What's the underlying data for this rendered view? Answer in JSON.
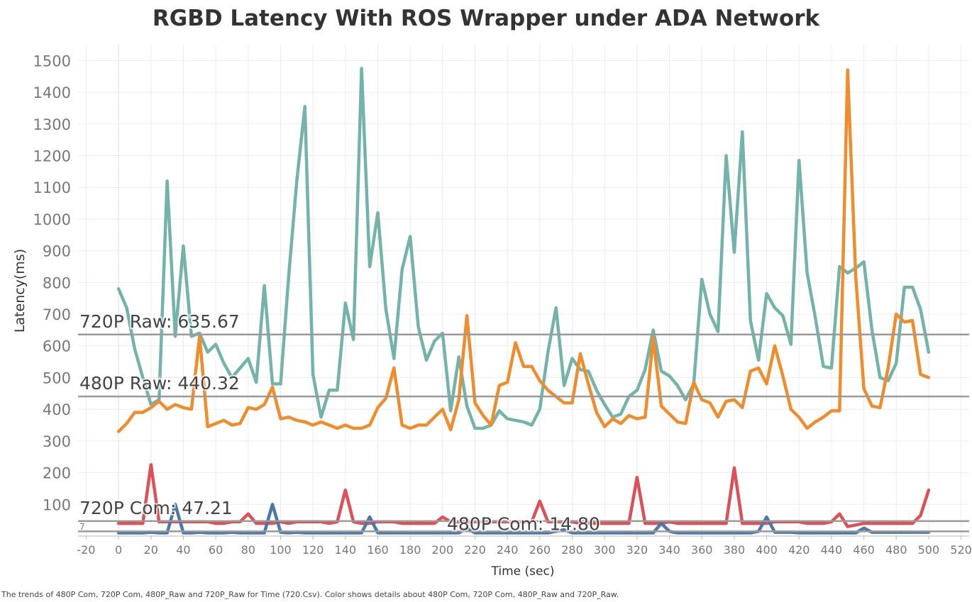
{
  "chart_data": {
    "type": "line",
    "title": "RGBD Latency With ROS Wrapper under ADA Network",
    "caption": "The trends of 480P Com, 720P Com, 480P_Raw and 720P_Raw for Time (720.Csv).  Color shows details about 480P Com, 720P Com, 480P_Raw and 720P_Raw.",
    "xlabel": "Time (sec)",
    "ylabel": "Latency(ms)",
    "xlim": [
      -25,
      525
    ],
    "ylim": [
      0,
      1550
    ],
    "x_ticks": [
      -20,
      0,
      20,
      40,
      60,
      80,
      100,
      120,
      140,
      160,
      180,
      200,
      220,
      240,
      260,
      280,
      300,
      320,
      340,
      360,
      380,
      400,
      420,
      440,
      460,
      480,
      500,
      520
    ],
    "y_ticks": [
      100,
      200,
      300,
      400,
      500,
      600,
      700,
      800,
      900,
      1000,
      1100,
      1200,
      1300,
      1400,
      1500
    ],
    "grid": true,
    "legend": "none",
    "x": [
      0,
      5,
      10,
      15,
      20,
      25,
      30,
      35,
      40,
      45,
      50,
      55,
      60,
      65,
      70,
      75,
      80,
      85,
      90,
      95,
      100,
      105,
      110,
      115,
      120,
      125,
      130,
      135,
      140,
      145,
      150,
      155,
      160,
      165,
      170,
      175,
      180,
      185,
      190,
      195,
      200,
      205,
      210,
      215,
      220,
      225,
      230,
      235,
      240,
      245,
      250,
      255,
      260,
      265,
      270,
      275,
      280,
      285,
      290,
      295,
      300,
      305,
      310,
      315,
      320,
      325,
      330,
      335,
      340,
      345,
      350,
      355,
      360,
      365,
      370,
      375,
      380,
      385,
      390,
      395,
      400,
      405,
      410,
      415,
      420,
      425,
      430,
      435,
      440,
      445,
      450,
      455,
      460,
      465,
      470,
      475,
      480,
      485,
      490,
      495,
      500
    ],
    "series": [
      {
        "key": "raw720",
        "color": "#73b3aa",
        "values": [
          780,
          720,
          590,
          500,
          415,
          430,
          1120,
          630,
          915,
          630,
          640,
          580,
          605,
          545,
          500,
          530,
          560,
          485,
          790,
          480,
          480,
          820,
          1120,
          1355,
          510,
          375,
          460,
          460,
          735,
          620,
          1475,
          850,
          1020,
          715,
          560,
          840,
          945,
          660,
          555,
          615,
          640,
          395,
          565,
          410,
          340,
          340,
          350,
          395,
          370,
          365,
          360,
          350,
          400,
          580,
          720,
          475,
          560,
          525,
          520,
          460,
          415,
          375,
          385,
          440,
          460,
          525,
          650,
          520,
          505,
          475,
          430,
          480,
          810,
          700,
          645,
          1200,
          895,
          1275,
          680,
          555,
          765,
          720,
          695,
          605,
          1185,
          830,
          690,
          535,
          530,
          850,
          830,
          845,
          865,
          650,
          500,
          490,
          545,
          785,
          785,
          715,
          580
        ]
      },
      {
        "key": "raw480",
        "color": "#ef8c2c",
        "values": [
          330,
          355,
          390,
          390,
          405,
          425,
          400,
          415,
          405,
          400,
          630,
          345,
          355,
          365,
          350,
          355,
          405,
          400,
          415,
          470,
          370,
          375,
          365,
          360,
          350,
          360,
          350,
          340,
          350,
          340,
          340,
          350,
          405,
          435,
          530,
          350,
          340,
          350,
          350,
          375,
          400,
          335,
          430,
          695,
          420,
          380,
          350,
          475,
          485,
          610,
          535,
          535,
          490,
          460,
          440,
          420,
          420,
          575,
          480,
          390,
          345,
          370,
          355,
          380,
          370,
          375,
          625,
          410,
          385,
          360,
          355,
          485,
          430,
          420,
          375,
          425,
          430,
          405,
          520,
          530,
          480,
          600,
          505,
          400,
          375,
          340,
          360,
          375,
          395,
          395,
          1470,
          820,
          465,
          410,
          405,
          530,
          700,
          675,
          680,
          510,
          500
        ]
      },
      {
        "key": "com720",
        "color": "#dc5058",
        "values": [
          40,
          40,
          40,
          40,
          225,
          45,
          45,
          45,
          45,
          45,
          45,
          45,
          40,
          40,
          45,
          45,
          70,
          40,
          40,
          40,
          45,
          40,
          45,
          45,
          45,
          45,
          40,
          45,
          145,
          45,
          40,
          40,
          45,
          45,
          45,
          40,
          40,
          40,
          40,
          40,
          60,
          45,
          45,
          45,
          45,
          45,
          45,
          45,
          45,
          45,
          45,
          45,
          110,
          45,
          45,
          45,
          45,
          40,
          40,
          40,
          40,
          40,
          40,
          40,
          185,
          40,
          40,
          40,
          45,
          40,
          40,
          40,
          40,
          40,
          40,
          40,
          215,
          40,
          40,
          40,
          40,
          45,
          45,
          45,
          45,
          40,
          40,
          40,
          45,
          70,
          30,
          35,
          40,
          40,
          40,
          40,
          40,
          40,
          40,
          65,
          145
        ]
      },
      {
        "key": "com480",
        "color": "#4c78a8",
        "values": [
          10,
          10,
          10,
          10,
          12,
          10,
          10,
          100,
          10,
          10,
          12,
          10,
          10,
          10,
          12,
          10,
          10,
          10,
          10,
          100,
          12,
          10,
          12,
          10,
          10,
          10,
          10,
          10,
          10,
          10,
          10,
          60,
          10,
          10,
          10,
          10,
          10,
          10,
          10,
          10,
          10,
          10,
          10,
          25,
          10,
          10,
          10,
          10,
          10,
          10,
          10,
          10,
          10,
          10,
          15,
          20,
          10,
          10,
          10,
          10,
          10,
          10,
          10,
          10,
          10,
          10,
          10,
          40,
          15,
          10,
          10,
          10,
          10,
          10,
          10,
          10,
          10,
          10,
          10,
          15,
          60,
          12,
          12,
          12,
          10,
          10,
          10,
          10,
          10,
          10,
          10,
          10,
          25,
          12,
          12,
          12,
          12,
          12,
          12,
          12,
          12
        ]
      }
    ],
    "reference_lines": [
      {
        "label": "720P Raw: 635.67",
        "value": 635.67
      },
      {
        "label": "480P Raw: 440.32",
        "value": 440.32
      },
      {
        "label": "720P Com: 47.21",
        "value": 47.21
      },
      {
        "label": "480P Com: 14.80",
        "value": 14.8
      }
    ],
    "marker_label": "7"
  }
}
